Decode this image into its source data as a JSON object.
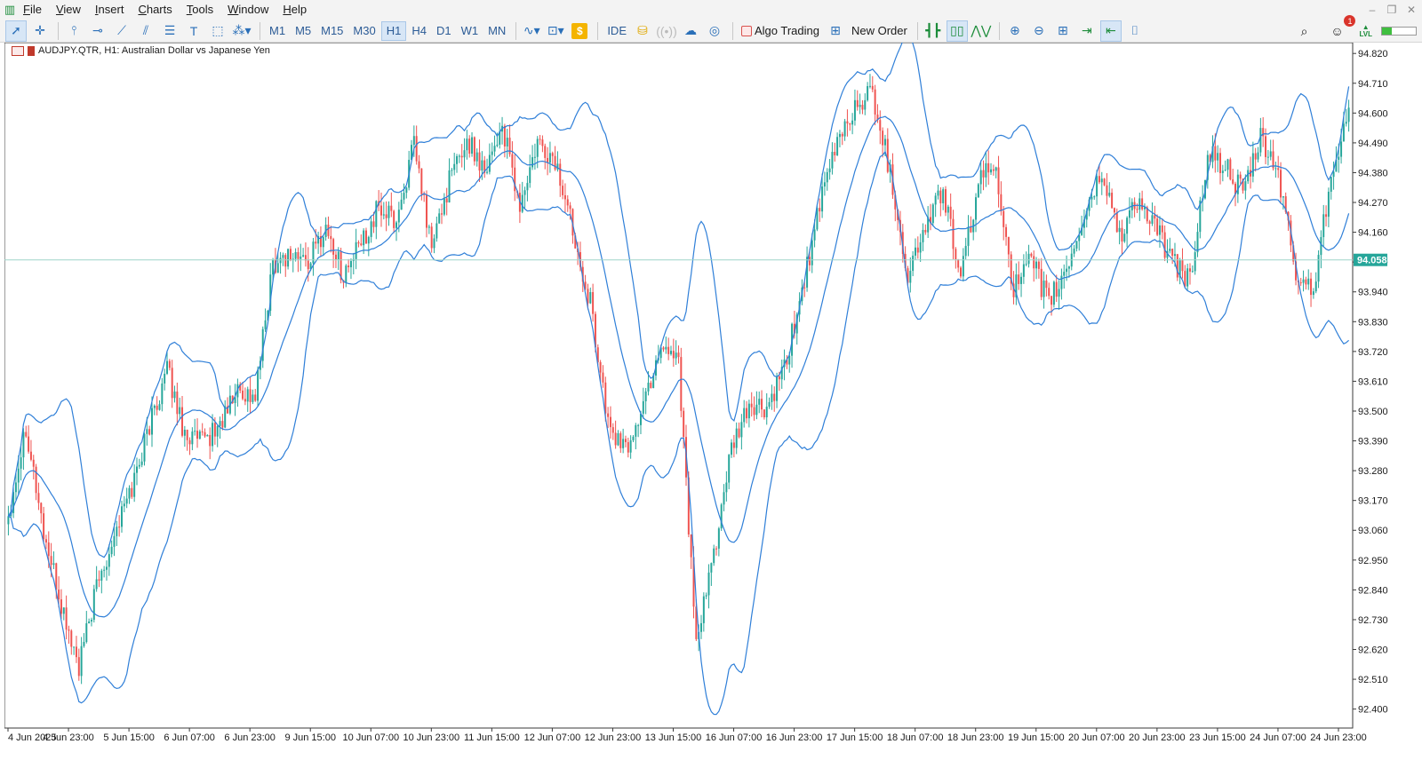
{
  "menu": {
    "items": [
      "File",
      "View",
      "Insert",
      "Charts",
      "Tools",
      "Window",
      "Help"
    ]
  },
  "toolbar": {
    "timeframes": [
      "M1",
      "M5",
      "M15",
      "M30",
      "H1",
      "H4",
      "D1",
      "W1",
      "MN"
    ],
    "active_timeframe": "H1",
    "ide_label": "IDE",
    "algo_trading_label": "Algo Trading",
    "new_order_label": "New Order",
    "dollar_label": "$",
    "notification_count": "1",
    "lvl_label": "LVL",
    "signal_level": 0.3
  },
  "chart": {
    "title": "AUDJPY.QTR, H1:  Australian Dollar vs Japanese Yen",
    "current_price_label": "94.058",
    "colors": {
      "bull": "#26a69a",
      "bear": "#ef5350",
      "band": "#2f7fd8",
      "price_line": "#9fd3c9",
      "price_label": "#26a69a"
    }
  },
  "chart_data": {
    "type": "candlestick",
    "symbol": "AUDJPY.QTR",
    "timeframe": "H1",
    "indicator": "Bollinger Bands",
    "ylim": [
      92.33,
      94.86
    ],
    "y_ticks": [
      "94.820",
      "94.710",
      "94.600",
      "94.490",
      "94.380",
      "94.270",
      "94.160",
      "94.050",
      "93.940",
      "93.830",
      "93.720",
      "93.610",
      "93.500",
      "93.390",
      "93.280",
      "93.170",
      "93.060",
      "92.950",
      "92.840",
      "92.730",
      "92.620",
      "92.510",
      "92.400"
    ],
    "x_ticks": [
      "4 Jun 2025",
      "4 Jun 23:00",
      "5 Jun 15:00",
      "6 Jun 07:00",
      "6 Jun 23:00",
      "9 Jun 15:00",
      "10 Jun 07:00",
      "10 Jun 23:00",
      "11 Jun 15:00",
      "12 Jun 07:00",
      "12 Jun 23:00",
      "13 Jun 15:00",
      "16 Jun 07:00",
      "16 Jun 23:00",
      "17 Jun 15:00",
      "18 Jun 07:00",
      "18 Jun 23:00",
      "19 Jun 15:00",
      "20 Jun 07:00",
      "20 Jun 23:00",
      "23 Jun 15:00",
      "24 Jun 07:00",
      "24 Jun 23:00"
    ],
    "current_price": 94.058,
    "close_series": [
      93.12,
      93.45,
      93.05,
      92.78,
      92.55,
      92.85,
      93.05,
      93.22,
      93.45,
      93.65,
      93.42,
      93.38,
      93.45,
      93.58,
      93.55,
      94.05,
      94.08,
      94.05,
      94.18,
      94.0,
      94.12,
      94.25,
      94.2,
      94.48,
      94.1,
      94.35,
      94.5,
      94.4,
      94.55,
      94.25,
      94.48,
      94.42,
      94.18,
      93.9,
      93.45,
      93.35,
      93.52,
      93.75,
      93.7,
      92.62,
      92.98,
      93.35,
      93.52,
      93.5,
      93.65,
      93.95,
      94.25,
      94.5,
      94.62,
      94.68,
      94.38,
      94.0,
      94.18,
      94.32,
      93.98,
      94.35,
      94.4,
      93.95,
      94.05,
      93.9,
      94.02,
      94.22,
      94.38,
      94.15,
      94.28,
      94.18,
      94.05,
      93.98,
      94.45,
      94.4,
      94.3,
      94.5,
      94.38,
      94.0,
      93.95,
      94.38,
      94.62
    ]
  }
}
